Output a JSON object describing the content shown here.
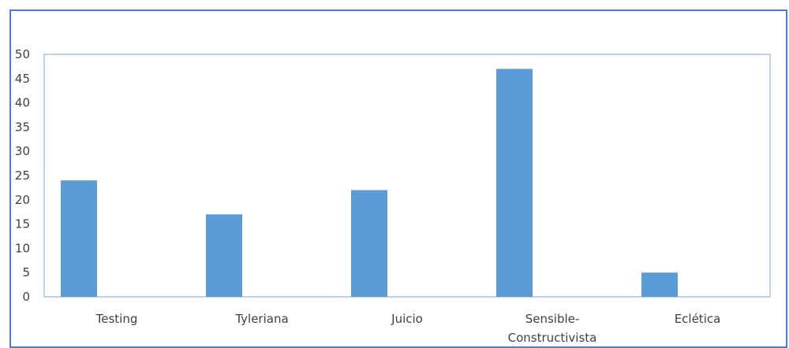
{
  "chart_data": {
    "type": "bar",
    "categories": [
      "Testing",
      "Tyleriana",
      "Juicio",
      "Sensible-Constructivista",
      "Eclética"
    ],
    "category_lines": [
      [
        "Testing"
      ],
      [
        "Tyleriana"
      ],
      [
        "Juicio"
      ],
      [
        "Sensible-",
        "Constructivista"
      ],
      [
        "Eclética"
      ]
    ],
    "values": [
      24,
      17,
      22,
      47,
      5
    ],
    "ylim": [
      0,
      50
    ],
    "yticks": [
      0,
      5,
      10,
      15,
      20,
      25,
      30,
      35,
      40,
      45,
      50
    ],
    "title": "",
    "xlabel": "",
    "ylabel": "",
    "grid": false,
    "legend": "none",
    "colors": {
      "bar": "#5b9bd5",
      "plot_border": "#9dc3e6",
      "frame_border": "#4a7fd0",
      "text": "#404040"
    }
  }
}
